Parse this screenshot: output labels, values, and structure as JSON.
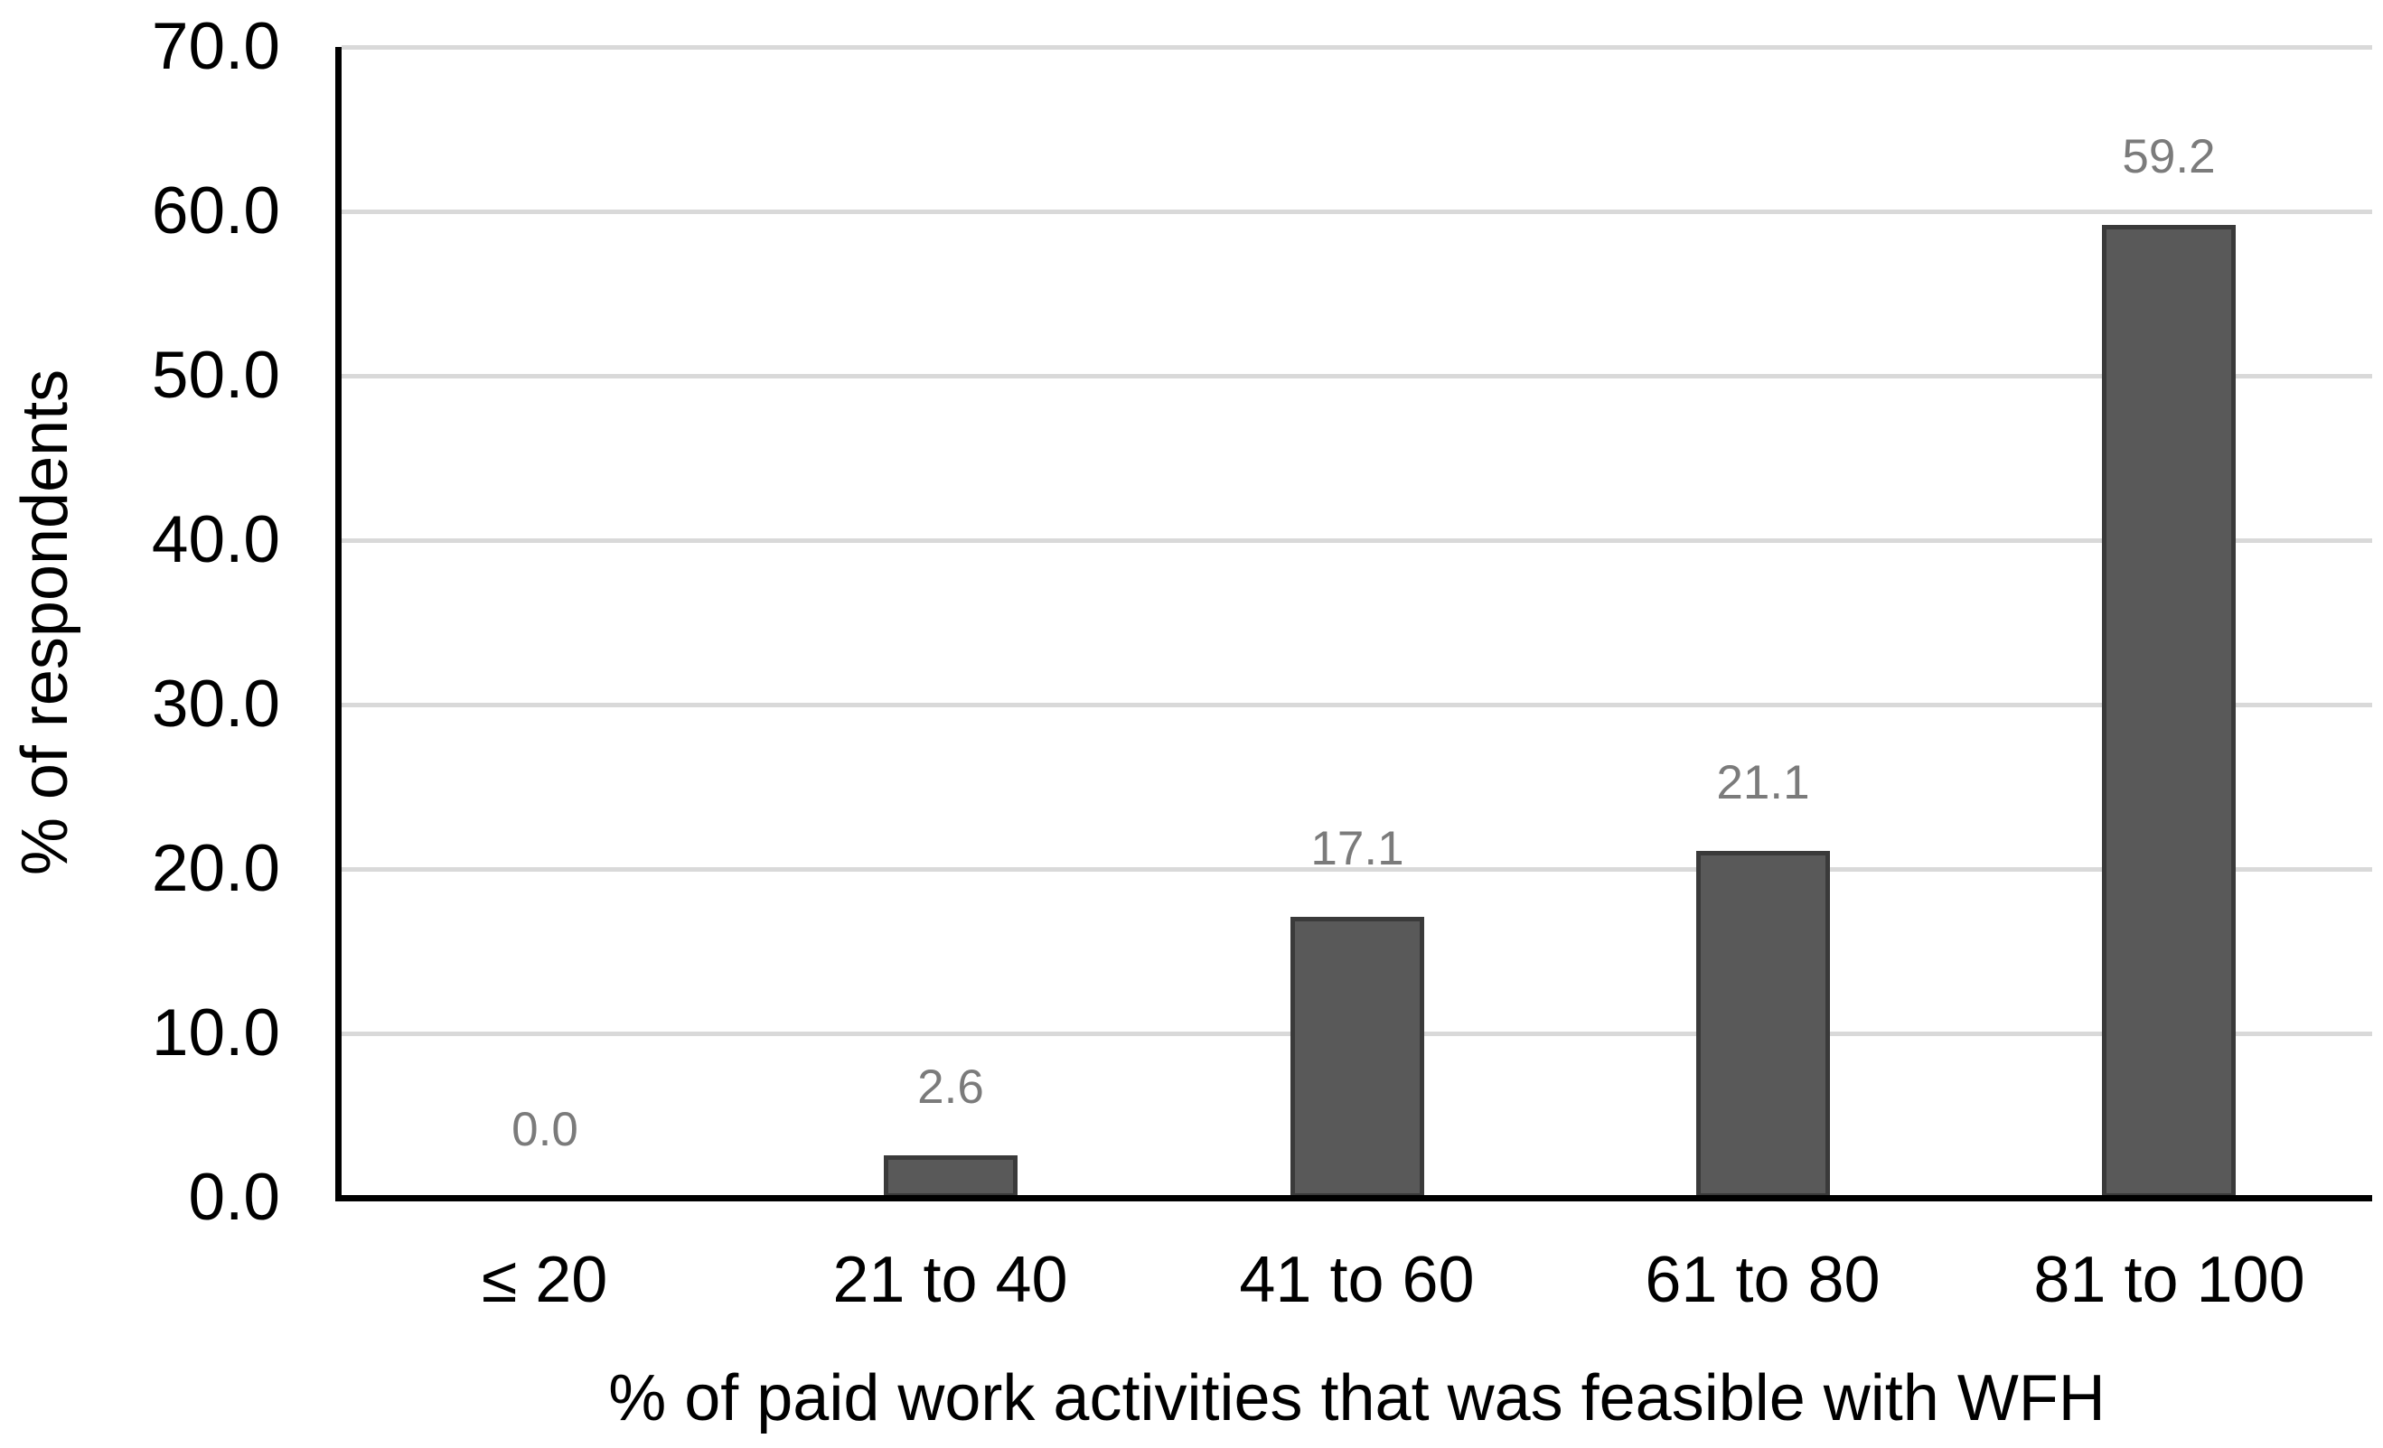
{
  "chart_data": {
    "type": "bar",
    "title": "",
    "categories": [
      "≤ 20",
      "21 to 40",
      "41 to 60",
      "61 to 80",
      "81 to 100"
    ],
    "values": [
      0.0,
      2.6,
      17.1,
      21.1,
      59.2
    ],
    "data_labels": [
      "0.0",
      "2.6",
      "17.1",
      "21.1",
      "59.2"
    ],
    "series_name": "% of respondents",
    "xlabel": "% of paid work activities that was feasible with WFH",
    "ylabel": "% of respondents",
    "ylim": [
      0,
      70
    ],
    "ytick_interval": 10,
    "ytick_labels": [
      "0.0",
      "10.0",
      "20.0",
      "30.0",
      "40.0",
      "50.0",
      "60.0",
      "70.0"
    ],
    "grid": "horizontal",
    "legend_position": "none",
    "colors": {
      "background": "#ffffff",
      "bar_fill": "#595959",
      "bar_border": "#3a3a3a",
      "gridline": "#d9d9d9",
      "axis": "#000000",
      "data_label": "#7b7b7b",
      "tick_label": "#000000"
    }
  }
}
